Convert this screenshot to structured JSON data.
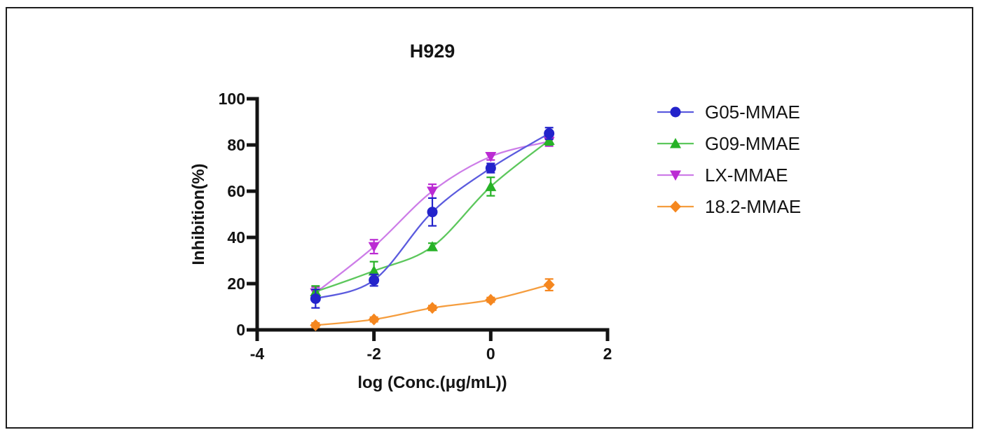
{
  "figure": {
    "background": "#ffffff",
    "border_color": "#1d1d1d",
    "axis_color": "#141414",
    "text_color": "#141414"
  },
  "chart_data": {
    "type": "line",
    "title": "H929",
    "xlabel": "log (Conc.(μg/mL))",
    "ylabel": "Inhibition(%)",
    "x": [
      -3,
      -2,
      -1,
      0,
      1
    ],
    "xlim": [
      -4,
      2
    ],
    "ylim": [
      0,
      100
    ],
    "x_ticks": [
      "-4",
      "-2",
      "0",
      "2"
    ],
    "x_tick_values": [
      -4,
      -2,
      0,
      2
    ],
    "y_ticks": [
      "0",
      "20",
      "40",
      "60",
      "80",
      "100"
    ],
    "y_tick_values": [
      0,
      20,
      40,
      60,
      80,
      100
    ],
    "grid": false,
    "legend_position": "right",
    "series": [
      {
        "name": "G05-MMAE",
        "marker": "circle",
        "marker_icon": "circle-marker-icon",
        "color": "#2323cb",
        "line_color": "#5b5bde",
        "values": [
          13.5,
          21.5,
          51,
          70,
          85
        ],
        "errors": [
          4,
          2.5,
          6,
          2,
          2.5
        ]
      },
      {
        "name": "G09-MMAE",
        "marker": "triangle-up",
        "marker_icon": "triangle-up-marker-icon",
        "color": "#27b227",
        "line_color": "#5cc75c",
        "values": [
          16.5,
          25.5,
          36,
          62,
          82
        ],
        "errors": [
          2.5,
          4,
          1.5,
          4,
          2
        ]
      },
      {
        "name": "LX-MMAE",
        "marker": "triangle-down",
        "marker_icon": "triangle-down-marker-icon",
        "color": "#bb2bd3",
        "line_color": "#cd7de8",
        "values": [
          16,
          36,
          60,
          75,
          81.5
        ],
        "errors": [
          2.5,
          3,
          3,
          1.5,
          2
        ]
      },
      {
        "name": "18.2-MMAE",
        "marker": "diamond",
        "marker_icon": "diamond-marker-icon",
        "color": "#f5871f",
        "line_color": "#f59d3e",
        "values": [
          2,
          4.5,
          9.5,
          13,
          19.5
        ],
        "errors": [
          1,
          1,
          1,
          1,
          2.5
        ]
      }
    ]
  }
}
